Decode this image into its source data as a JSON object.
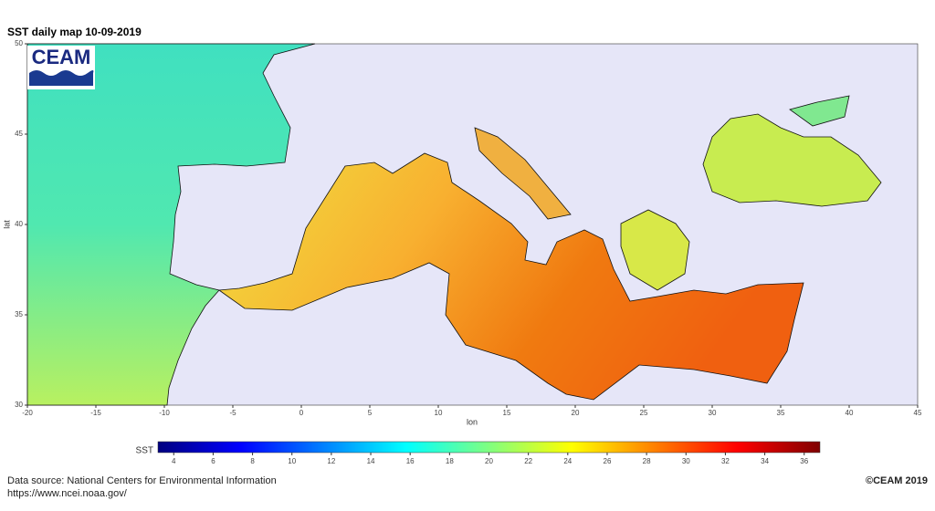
{
  "chart_data": {
    "type": "map",
    "title": "SST daily map 10-09-2019",
    "x_label": "lon",
    "y_label": "lat",
    "xlim": [
      -20,
      45
    ],
    "xticks": [
      -20,
      -15,
      -10,
      -5,
      0,
      5,
      10,
      15,
      20,
      25,
      30,
      35,
      40,
      45
    ],
    "ylim": [
      30,
      50
    ],
    "yticks": [
      30,
      35,
      40,
      45,
      50
    ],
    "colorbar": {
      "label": "SST",
      "lim": [
        3.2,
        36.8
      ],
      "ticks": [
        4,
        6,
        8,
        10,
        12,
        14,
        16,
        18,
        20,
        22,
        24,
        26,
        28,
        30,
        32,
        34,
        36
      ],
      "colors": [
        "#00007f",
        "#0000ff",
        "#0080ff",
        "#00ffff",
        "#80ff80",
        "#ffff00",
        "#ff8000",
        "#ff0000",
        "#7f0000"
      ]
    }
  },
  "logo": "CEAM",
  "source": "Data source: National Centers for Environmental Information",
  "url": "https://www.ncei.noaa.gov/",
  "copyright": "©CEAM 2019"
}
